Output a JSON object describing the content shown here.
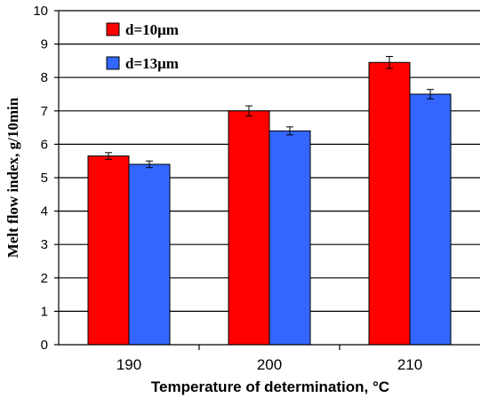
{
  "chart_data": {
    "type": "bar",
    "xlabel": "Temperature of determination, °C",
    "ylabel": "Melt flow index, g/10min",
    "ylim": [
      0,
      10
    ],
    "yticks": [
      0,
      1,
      2,
      3,
      4,
      5,
      6,
      7,
      8,
      9,
      10
    ],
    "categories": [
      "190",
      "200",
      "210"
    ],
    "grid": "horizontal",
    "legend_position": "top-left",
    "series": [
      {
        "name": "d=10μm",
        "color": "#ff0000",
        "values": [
          5.65,
          7.0,
          8.45
        ],
        "errors": [
          0.1,
          0.15,
          0.18
        ]
      },
      {
        "name": "d=13μm",
        "color": "#3366ff",
        "values": [
          5.4,
          6.4,
          7.5
        ],
        "errors": [
          0.1,
          0.12,
          0.14
        ]
      }
    ]
  }
}
